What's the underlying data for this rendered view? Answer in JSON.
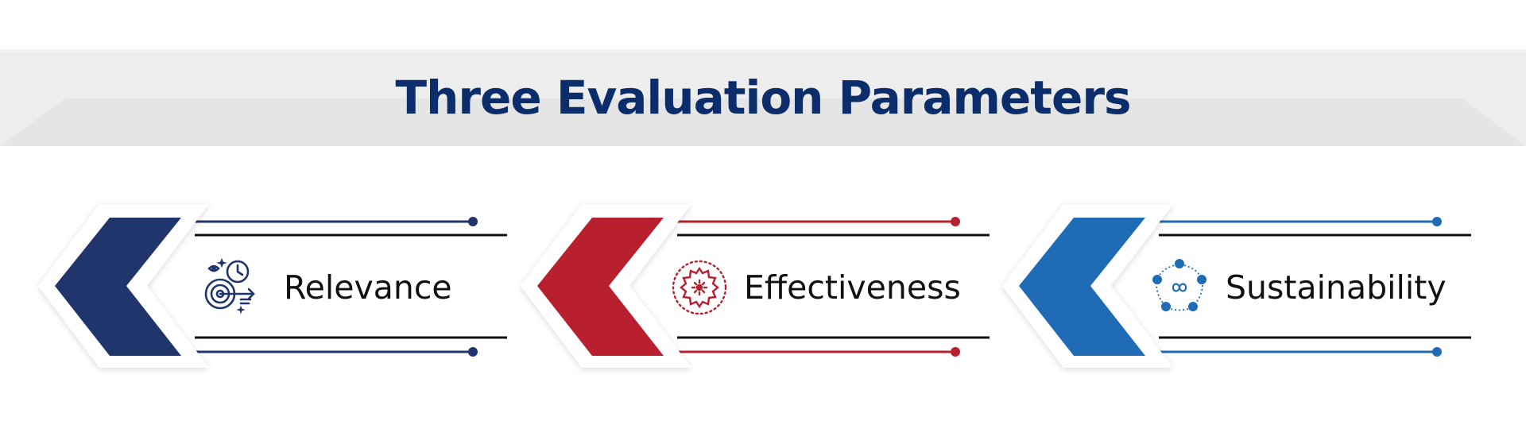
{
  "title": "Three Evaluation Parameters",
  "colors": {
    "title": "#0c2d6b",
    "band": "#ececec",
    "navy": "#20356c",
    "red": "#b8202f",
    "blue": "#1f6bb5"
  },
  "parameters": [
    {
      "label": "Relevance",
      "icon": "target-clock-icon",
      "color": "#20356c"
    },
    {
      "label": "Effectiveness",
      "icon": "gear-circle-icon",
      "color": "#b8202f"
    },
    {
      "label": "Sustainability",
      "icon": "infinity-cycle-icon",
      "color": "#1f6bb5"
    }
  ]
}
